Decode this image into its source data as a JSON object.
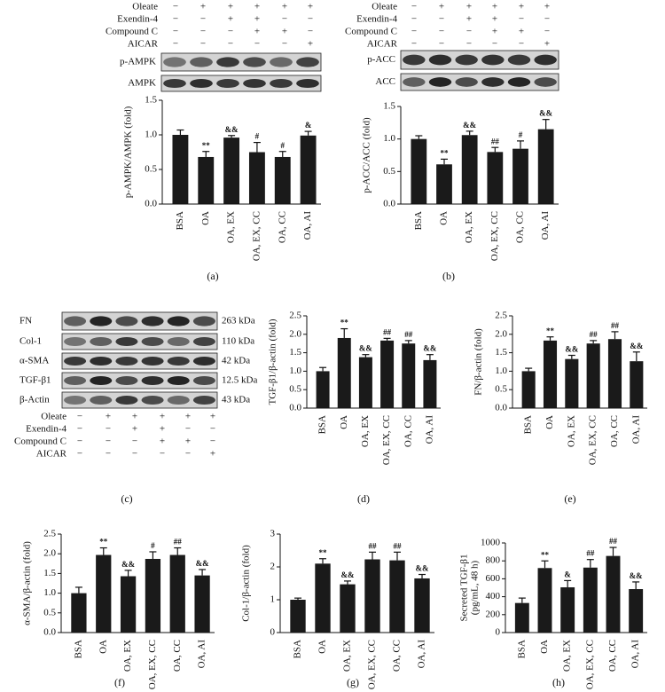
{
  "chart_data": [
    {
      "type": "bar",
      "panel_label": "(a)",
      "y_label": "p-AMPK/AMPK (fold)",
      "color": "#1a1a1a",
      "categories": [
        "BSA",
        "OA",
        "OA, EX",
        "OA, EX, CC",
        "OA, CC",
        "OA, AI"
      ],
      "values": [
        1.0,
        0.68,
        0.96,
        0.75,
        0.68,
        0.99
      ],
      "errors": [
        0.07,
        0.08,
        0.03,
        0.14,
        0.08,
        0.06
      ],
      "annotations": [
        null,
        "**",
        "&&",
        "#",
        "#",
        "&"
      ],
      "ylim": [
        0,
        1.5
      ],
      "yticks": [
        {
          "value": 0,
          "label": "0.0"
        },
        0.5,
        {
          "value": 1,
          "label": "1.0"
        },
        1.5
      ]
    },
    {
      "type": "bar",
      "panel_label": "(b)",
      "y_label": "p-ACC/ACC (fold)",
      "color": "#1a1a1a",
      "categories": [
        "BSA",
        "OA",
        "OA, EX",
        "OA, EX, CC",
        "OA, CC",
        "OA, AI"
      ],
      "values": [
        1.0,
        0.61,
        1.06,
        0.8,
        0.85,
        1.15
      ],
      "errors": [
        0.05,
        0.08,
        0.06,
        0.07,
        0.12,
        0.15
      ],
      "annotations": [
        null,
        "**",
        "&&",
        "##",
        "#",
        "&&"
      ],
      "ylim": [
        0,
        1.5
      ],
      "yticks": [
        {
          "value": 0,
          "label": "0.0"
        },
        0.5,
        {
          "value": 1,
          "label": "1.0"
        },
        1.5
      ]
    },
    {
      "type": "bar",
      "panel_label": "(d)",
      "y_label": "TGF-β1/β-actin (fold)",
      "color": "#1a1a1a",
      "categories": [
        "BSA",
        "OA",
        "OA, EX",
        "OA, EX, CC",
        "OA, CC",
        "OA, AI"
      ],
      "values": [
        1.0,
        1.9,
        1.38,
        1.83,
        1.75,
        1.3
      ],
      "errors": [
        0.1,
        0.25,
        0.07,
        0.06,
        0.08,
        0.15
      ],
      "annotations": [
        null,
        "**",
        "&&",
        "##",
        "##",
        "&&"
      ],
      "ylim": [
        0,
        2.5
      ],
      "yticks": [
        {
          "value": 0,
          "label": "0.0"
        },
        0.5,
        {
          "value": 1,
          "label": "1.0"
        },
        1.5,
        {
          "value": 2,
          "label": "2.0"
        },
        2.5
      ]
    },
    {
      "type": "bar",
      "panel_label": "(e)",
      "y_label": "FN/β-actin (fold)",
      "color": "#1a1a1a",
      "categories": [
        "BSA",
        "OA",
        "OA, EX",
        "OA, EX, CC",
        "OA, CC",
        "OA, AI"
      ],
      "values": [
        1.0,
        1.83,
        1.33,
        1.75,
        1.87,
        1.27
      ],
      "errors": [
        0.08,
        0.1,
        0.1,
        0.08,
        0.2,
        0.25
      ],
      "annotations": [
        null,
        "**",
        "&&",
        "##",
        "##",
        "&&"
      ],
      "ylim": [
        0,
        2.5
      ],
      "yticks": [
        {
          "value": 0,
          "label": "0.0"
        },
        0.5,
        {
          "value": 1,
          "label": "1.0"
        },
        1.5,
        {
          "value": 2,
          "label": "2.0"
        },
        2.5
      ]
    },
    {
      "type": "bar",
      "panel_label": "(f)",
      "y_label": "α-SMA/β-actin (fold)",
      "color": "#1a1a1a",
      "categories": [
        "BSA",
        "OA",
        "OA, EX",
        "OA, EX, CC",
        "OA, CC",
        "OA, AI"
      ],
      "values": [
        1.0,
        1.97,
        1.43,
        1.87,
        1.97,
        1.45
      ],
      "errors": [
        0.15,
        0.18,
        0.15,
        0.18,
        0.18,
        0.15
      ],
      "annotations": [
        null,
        "**",
        "&&",
        "#",
        "##",
        "&&"
      ],
      "ylim": [
        0,
        2.5
      ],
      "yticks": [
        {
          "value": 0,
          "label": "0.0"
        },
        0.5,
        {
          "value": 1,
          "label": "1.0"
        },
        1.5,
        {
          "value": 2,
          "label": "2.0"
        },
        2.5
      ]
    },
    {
      "type": "bar",
      "panel_label": "(g)",
      "y_label": "Col-1/β-actin (fold)",
      "color": "#1a1a1a",
      "categories": [
        "BSA",
        "OA",
        "OA, EX",
        "OA, EX, CC",
        "OA, CC",
        "OA, AI"
      ],
      "values": [
        1.0,
        2.1,
        1.47,
        2.23,
        2.2,
        1.65
      ],
      "errors": [
        0.05,
        0.15,
        0.1,
        0.22,
        0.25,
        0.12
      ],
      "annotations": [
        null,
        "**",
        "&&",
        "##",
        "##",
        "&&"
      ],
      "ylim": [
        0,
        3
      ],
      "yticks": [
        0,
        1,
        2,
        3
      ]
    },
    {
      "type": "bar",
      "panel_label": "(h)",
      "y_label": "Secreted TGF-β1",
      "y_label_2": "(pg/mL, 48 h)",
      "color": "#1a1a1a",
      "categories": [
        "BSA",
        "OA",
        "OA, EX",
        "OA, EX, CC",
        "OA, CC",
        "OA, AI"
      ],
      "values": [
        330,
        720,
        505,
        725,
        855,
        485
      ],
      "errors": [
        55,
        80,
        75,
        90,
        95,
        80
      ],
      "annotations": [
        null,
        "**",
        "&",
        "##",
        "##",
        "&&"
      ],
      "ylim": [
        0,
        1000
      ],
      "yticks": [
        0,
        200,
        400,
        600,
        800,
        1000
      ]
    }
  ],
  "treatments": [
    {
      "rows": [
        {
          "name": "Oleate",
          "signs": [
            "−",
            "+",
            "+",
            "+",
            "+",
            "+"
          ]
        },
        {
          "name": "Exendin-4",
          "signs": [
            "−",
            "−",
            "+",
            "+",
            "−",
            "−"
          ]
        },
        {
          "name": "Compound C",
          "signs": [
            "−",
            "−",
            "−",
            "+",
            "+",
            "−"
          ]
        },
        {
          "name": "AICAR",
          "signs": [
            "−",
            "−",
            "−",
            "−",
            "−",
            "+"
          ]
        }
      ]
    },
    {
      "rows": [
        {
          "name": "Oleate",
          "signs": [
            "−",
            "+",
            "+",
            "+",
            "+",
            "+"
          ]
        },
        {
          "name": "Exendin-4",
          "signs": [
            "−",
            "−",
            "+",
            "+",
            "−",
            "−"
          ]
        },
        {
          "name": "Compound C",
          "signs": [
            "−",
            "−",
            "−",
            "+",
            "+",
            "−"
          ]
        },
        {
          "name": "AICAR",
          "signs": [
            "−",
            "−",
            "−",
            "−",
            "−",
            "+"
          ]
        }
      ]
    },
    {
      "rows": [
        {
          "name": "Oleate",
          "signs": [
            "−",
            "+",
            "+",
            "+",
            "+",
            "+"
          ]
        },
        {
          "name": "Exendin-4",
          "signs": [
            "−",
            "−",
            "+",
            "+",
            "−",
            "−"
          ]
        },
        {
          "name": "Compound C",
          "signs": [
            "−",
            "−",
            "−",
            "+",
            "+",
            "−"
          ]
        },
        {
          "name": "AICAR",
          "signs": [
            "−",
            "−",
            "−",
            "−",
            "−",
            "+"
          ]
        }
      ]
    }
  ],
  "blots": [
    {
      "labels": [
        "p-AMPK",
        "AMPK"
      ]
    },
    {
      "labels": [
        "p-ACC",
        "ACC"
      ]
    },
    {
      "panel_label": "(c)",
      "labels": [
        "FN",
        "Col-1",
        "α-SMA",
        "TGF-β1",
        "β-Actin"
      ],
      "sizes": [
        "263 kDa",
        "110 kDa",
        "42 kDa",
        "12.5 kDa",
        "43 kDa"
      ]
    }
  ]
}
